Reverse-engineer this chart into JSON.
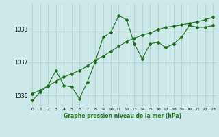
{
  "title": "Graphe pression niveau de la mer (hPa)",
  "bg_color": "#cce8e8",
  "grid_color": "#aacccc",
  "line_color": "#1a6e1a",
  "x_ticks": [
    0,
    1,
    2,
    3,
    4,
    5,
    6,
    7,
    8,
    9,
    10,
    11,
    12,
    13,
    14,
    15,
    16,
    17,
    18,
    19,
    20,
    21,
    22,
    23
  ],
  "ylim": [
    1035.65,
    1038.75
  ],
  "yticks": [
    1036,
    1037,
    1038
  ],
  "series1": [
    1035.85,
    1036.1,
    1036.3,
    1036.75,
    1036.3,
    1036.25,
    1035.9,
    1036.4,
    1037.0,
    1037.75,
    1037.9,
    1038.4,
    1038.28,
    1037.55,
    1037.1,
    1037.55,
    1037.6,
    1037.45,
    1037.55,
    1037.75,
    1038.1,
    1038.05,
    1038.05,
    1038.1
  ],
  "series2": [
    1036.05,
    1036.15,
    1036.28,
    1036.42,
    1036.55,
    1036.65,
    1036.75,
    1036.88,
    1037.05,
    1037.18,
    1037.32,
    1037.48,
    1037.62,
    1037.72,
    1037.82,
    1037.88,
    1037.98,
    1038.05,
    1038.08,
    1038.12,
    1038.18,
    1038.22,
    1038.28,
    1038.35
  ]
}
